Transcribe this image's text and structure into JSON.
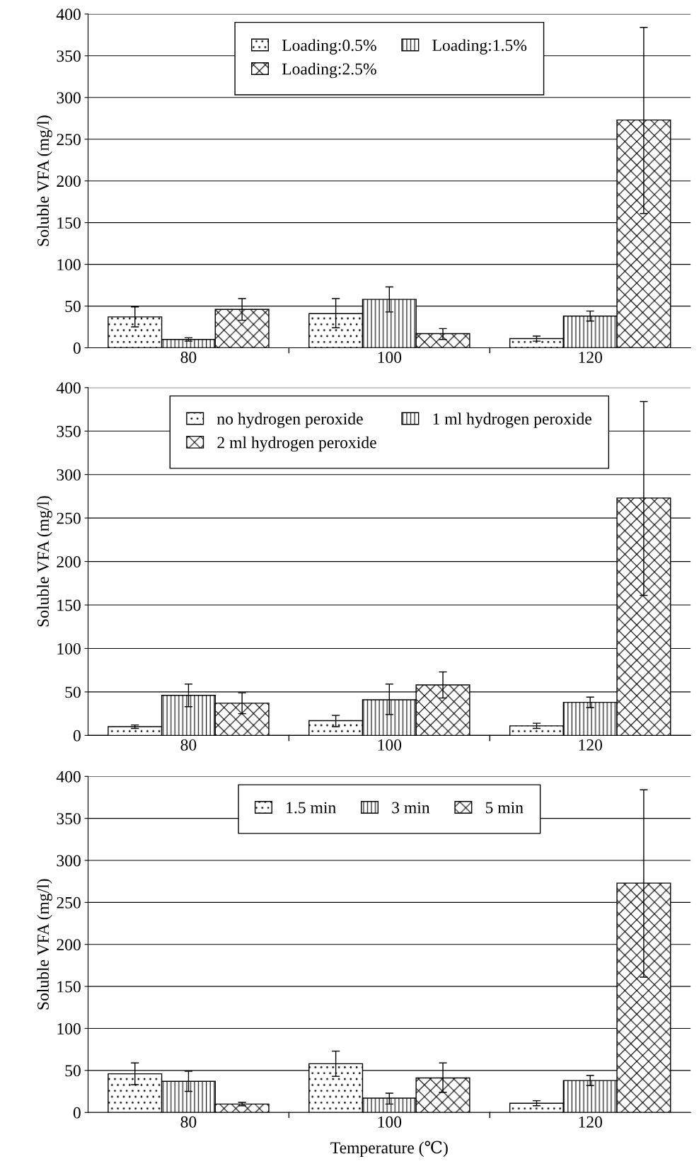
{
  "chart_data": [
    {
      "type": "bar",
      "ylabel": "Soluble VFA (mg/l)",
      "categories": [
        "80",
        "100",
        "120"
      ],
      "ylim": [
        0,
        400
      ],
      "yticks": [
        0,
        50,
        100,
        150,
        200,
        250,
        300,
        350,
        400
      ],
      "grid": "y",
      "legend": "top",
      "series": [
        {
          "name": "Loading:0.5%",
          "color": "#000000",
          "values": [
            37,
            41,
            11
          ],
          "errors": [
            [
              25,
              49
            ],
            [
              24,
              59
            ],
            [
              8,
              14
            ]
          ]
        },
        {
          "name": "Loading:1.5%",
          "color": "#000000",
          "values": [
            10,
            58,
            38
          ],
          "errors": [
            [
              8,
              12
            ],
            [
              43,
              73
            ],
            [
              32,
              44
            ]
          ]
        },
        {
          "name": "Loading:2.5%",
          "color": "#000000",
          "values": [
            46,
            17,
            273
          ],
          "errors": [
            [
              33,
              59
            ],
            [
              10,
              23
            ],
            [
              161,
              384
            ]
          ]
        }
      ]
    },
    {
      "type": "bar",
      "ylabel": "Soluble VFA (mg/l)",
      "categories": [
        "80",
        "100",
        "120"
      ],
      "ylim": [
        0,
        400
      ],
      "yticks": [
        0,
        50,
        100,
        150,
        200,
        250,
        300,
        350,
        400
      ],
      "grid": "y",
      "legend": "top",
      "series": [
        {
          "name": "no hydrogen peroxide",
          "color": "#000000",
          "values": [
            10,
            17,
            11
          ],
          "errors": [
            [
              8,
              12
            ],
            [
              10,
              23
            ],
            [
              8,
              14
            ]
          ]
        },
        {
          "name": "1 ml hydrogen peroxide",
          "color": "#000000",
          "values": [
            46,
            41,
            38
          ],
          "errors": [
            [
              33,
              59
            ],
            [
              24,
              59
            ],
            [
              32,
              44
            ]
          ]
        },
        {
          "name": "2 ml hydrogen peroxide",
          "color": "#000000",
          "values": [
            37,
            58,
            273
          ],
          "errors": [
            [
              25,
              49
            ],
            [
              43,
              73
            ],
            [
              161,
              384
            ]
          ]
        }
      ]
    },
    {
      "type": "bar",
      "ylabel": "Soluble VFA (mg/l)",
      "xlabel": "Temperature (℃)",
      "categories": [
        "80",
        "100",
        "120"
      ],
      "ylim": [
        0,
        400
      ],
      "yticks": [
        0,
        50,
        100,
        150,
        200,
        250,
        300,
        350,
        400
      ],
      "grid": "y",
      "legend": "top",
      "series": [
        {
          "name": "1.5 min",
          "color": "#000000",
          "values": [
            46,
            58,
            11
          ],
          "errors": [
            [
              33,
              59
            ],
            [
              43,
              73
            ],
            [
              8,
              14
            ]
          ]
        },
        {
          "name": "3 min",
          "color": "#000000",
          "values": [
            37,
            17,
            38
          ],
          "errors": [
            [
              25,
              49
            ],
            [
              10,
              23
            ],
            [
              32,
              44
            ]
          ]
        },
        {
          "name": "5 min",
          "color": "#000000",
          "values": [
            10,
            41,
            273
          ],
          "errors": [
            [
              8,
              12
            ],
            [
              24,
              59
            ],
            [
              161,
              384
            ]
          ]
        }
      ]
    }
  ]
}
